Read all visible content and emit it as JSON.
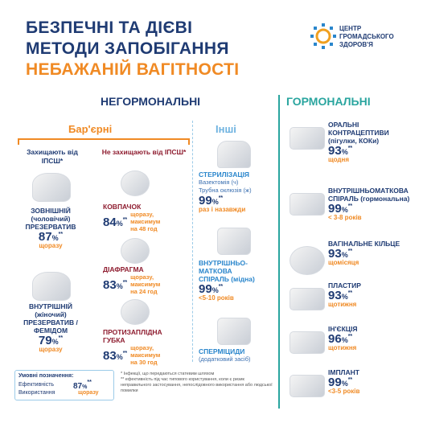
{
  "header": {
    "title_lines": [
      "БЕЗПЕЧНІ ТА ДІЄВІ",
      "МЕТОДИ ЗАПОБІГАННЯ"
    ],
    "highlight": "НЕБАЖАНІЙ ВАГІТНОСТІ",
    "logo_lines": [
      "ЦЕНТР",
      "ГРОМАДСЬКОГО",
      "ЗДОРОВ'Я"
    ]
  },
  "nonhormonal": {
    "title": "НЕГОРМОНАЛЬНІ",
    "barrier": "Бар'єрні",
    "other": "Інші",
    "protect": {
      "heading": "Захищають від ІПСШ*",
      "items": [
        {
          "name_lines": [
            "ЗОВНІШНІЙ",
            "(чоловічий)",
            "ПРЕЗЕРВАТИВ"
          ],
          "rate": 87,
          "unit": "%",
          "note": "**",
          "usage_lines": [
            "щоразу"
          ]
        },
        {
          "name_lines": [
            "ВНУТРІШНІЙ",
            "(жіночий)",
            "ПРЕЗЕРВАТИВ /",
            "ФЕМІДОМ"
          ],
          "rate": 79,
          "unit": "%",
          "note": "**",
          "usage_lines": [
            "щоразу"
          ]
        }
      ]
    },
    "noprotect": {
      "heading": "Не захищають від ІПСШ*",
      "items": [
        {
          "name_lines": [
            "КОВПАЧОК"
          ],
          "rate": 84,
          "unit": "%",
          "note": "**",
          "usage_lines": [
            "щоразу,",
            "максимум",
            "на 48 год"
          ]
        },
        {
          "name_lines": [
            "ДІАФРАГМА"
          ],
          "rate": 83,
          "unit": "%",
          "note": "**",
          "usage_lines": [
            "щоразу,",
            "максимум",
            "на 24 год"
          ]
        },
        {
          "name_lines": [
            "ПРОТИЗАПЛІДНА",
            "ГУБКА"
          ],
          "rate": 83,
          "unit": "%",
          "note": "**",
          "usage_lines": [
            "щоразу,",
            "максимум",
            "на 30 год"
          ]
        }
      ]
    },
    "others": {
      "items": [
        {
          "name_lines": [
            "СТЕРИЛІЗАЦІЯ"
          ],
          "detail_lines": [
            "Вазектомія (ч)",
            "Трубна оклюзія (ж)"
          ],
          "rate": 99,
          "unit": "%",
          "note": "**",
          "usage_lines": [
            "раз і назавжди"
          ]
        },
        {
          "name_lines": [
            "ВНУТРІШНЬО-",
            "МАТКОВА",
            "СПІРАЛЬ (мідна)"
          ],
          "rate": 99,
          "unit": "%",
          "note": "**",
          "usage_lines": [
            "<5-10 років"
          ]
        },
        {
          "name_lines": [
            "СПЕРМІЦИДИ"
          ],
          "detail_lines": [
            "(додатковий засіб)"
          ]
        }
      ]
    }
  },
  "hormonal": {
    "title": "ГОРМОНАЛЬНІ",
    "items": [
      {
        "name_lines": [
          "ОРАЛЬНІ",
          "КОНТРАЦЕПТИВИ",
          "(пігулки, КОКи)"
        ],
        "rate": 93,
        "unit": "%",
        "note": "**",
        "usage_lines": [
          "щодня"
        ]
      },
      {
        "name_lines": [
          "ВНУТРІШНЬОМАТКОВА",
          "СПІРАЛЬ (гормональна)"
        ],
        "rate": 99,
        "unit": "%",
        "note": "**",
        "usage_lines": [
          "< 3-8 років"
        ]
      },
      {
        "name_lines": [
          "ВАГІНАЛЬНЕ КІЛЬЦЕ"
        ],
        "rate": 93,
        "unit": "%",
        "note": "**",
        "usage_lines": [
          "щомісяця"
        ]
      },
      {
        "name_lines": [
          "ПЛАСТИР"
        ],
        "rate": 93,
        "unit": "%",
        "note": "**",
        "usage_lines": [
          "щотижня"
        ]
      },
      {
        "name_lines": [
          "ІН'ЄКЦІЯ"
        ],
        "rate": 96,
        "unit": "%",
        "note": "**",
        "usage_lines": [
          "щотижня"
        ]
      },
      {
        "name_lines": [
          "ІМПЛАНТ"
        ],
        "rate": 99,
        "unit": "%",
        "note": "**",
        "usage_lines": [
          "<3-5 років"
        ]
      }
    ]
  },
  "legend": {
    "title": "Умовні позначення:",
    "effectiveness": "Ефективність",
    "usage": "Використання",
    "rate": 87,
    "unit": "%",
    "note": "**",
    "usage_example": "щоразу"
  },
  "footnotes": [
    "* Інфекції, що передаються статевим шляхом",
    "** ефективність під час типового користування, коли є ризик неправильного застосування, непослідовного використання або людської помилки"
  ]
}
